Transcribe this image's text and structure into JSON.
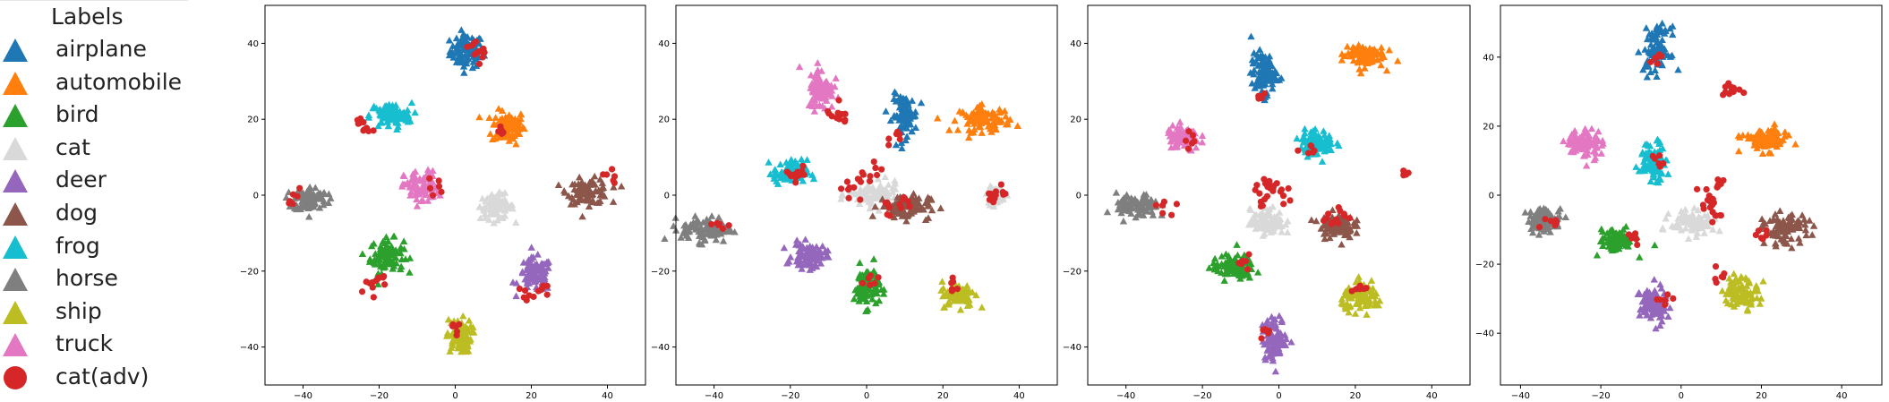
{
  "legend": {
    "title": "Labels",
    "items": [
      {
        "label": "airplane",
        "color": "#1f77b4",
        "marker": "triangle"
      },
      {
        "label": "automobile",
        "color": "#ff7f0e",
        "marker": "triangle"
      },
      {
        "label": "bird",
        "color": "#2ca02c",
        "marker": "triangle"
      },
      {
        "label": "cat",
        "color": "#d9d9d9",
        "marker": "triangle"
      },
      {
        "label": "deer",
        "color": "#9467bd",
        "marker": "triangle"
      },
      {
        "label": "dog",
        "color": "#8c564b",
        "marker": "triangle"
      },
      {
        "label": "frog",
        "color": "#17becf",
        "marker": "triangle"
      },
      {
        "label": "horse",
        "color": "#7f7f7f",
        "marker": "triangle"
      },
      {
        "label": "ship",
        "color": "#bcbd22",
        "marker": "triangle"
      },
      {
        "label": "truck",
        "color": "#e377c2",
        "marker": "triangle"
      },
      {
        "label": "cat(adv)",
        "color": "#d62728",
        "marker": "circle"
      }
    ]
  },
  "chart_data": [
    {
      "type": "scatter",
      "xlim": [
        -50,
        50
      ],
      "ylim": [
        -50,
        50
      ],
      "xticks": [
        -40,
        -20,
        0,
        20,
        40
      ],
      "yticks": [
        40,
        20,
        0,
        -20,
        -40
      ],
      "clusters": [
        {
          "label": "airplane",
          "center": [
            3,
            38
          ],
          "spread": [
            4,
            4
          ]
        },
        {
          "label": "automobile",
          "center": [
            14,
            18
          ],
          "spread": [
            4,
            4
          ]
        },
        {
          "label": "bird",
          "center": [
            -18,
            -16
          ],
          "spread": [
            4,
            4
          ]
        },
        {
          "label": "cat",
          "center": [
            11,
            -3
          ],
          "spread": [
            4,
            3
          ]
        },
        {
          "label": "deer",
          "center": [
            21,
            -21
          ],
          "spread": [
            4,
            4
          ]
        },
        {
          "label": "dog",
          "center": [
            35,
            1
          ],
          "spread": [
            5,
            3
          ]
        },
        {
          "label": "frog",
          "center": [
            -17,
            21
          ],
          "spread": [
            5,
            3
          ]
        },
        {
          "label": "horse",
          "center": [
            -38,
            -1
          ],
          "spread": [
            4,
            3
          ]
        },
        {
          "label": "ship",
          "center": [
            1,
            -37
          ],
          "spread": [
            3,
            4
          ]
        },
        {
          "label": "truck",
          "center": [
            -9,
            2
          ],
          "spread": [
            4,
            4
          ]
        }
      ],
      "adversarial": [
        [
          -25,
          19
        ],
        [
          -23,
          18
        ],
        [
          -20,
          -22
        ],
        [
          -22,
          -24
        ],
        [
          4,
          39
        ],
        [
          7,
          37
        ],
        [
          23,
          -25
        ],
        [
          19,
          -26
        ],
        [
          -42,
          0
        ],
        [
          41,
          5
        ],
        [
          0,
          -35
        ],
        [
          -6,
          2
        ],
        [
          12,
          17
        ]
      ]
    },
    {
      "type": "scatter",
      "xlim": [
        -50,
        50
      ],
      "ylim": [
        -50,
        50
      ],
      "xticks": [
        -40,
        -20,
        0,
        20,
        40
      ],
      "yticks": [
        40,
        20,
        0,
        -20,
        -40
      ],
      "clusters": [
        {
          "label": "airplane",
          "center": [
            10,
            21
          ],
          "spread": [
            3,
            5
          ]
        },
        {
          "label": "automobile",
          "center": [
            31,
            20
          ],
          "spread": [
            6,
            3
          ]
        },
        {
          "label": "bird",
          "center": [
            0,
            -24
          ],
          "spread": [
            3,
            5
          ]
        },
        {
          "label": "cat",
          "center": [
            2,
            0
          ],
          "spread": [
            6,
            3
          ]
        },
        {
          "label": "deer",
          "center": [
            -15,
            -16
          ],
          "spread": [
            4,
            3
          ]
        },
        {
          "label": "dog",
          "center": [
            10,
            -3
          ],
          "spread": [
            6,
            3
          ]
        },
        {
          "label": "frog",
          "center": [
            -20,
            6
          ],
          "spread": [
            4,
            3
          ]
        },
        {
          "label": "horse",
          "center": [
            -42,
            -9
          ],
          "spread": [
            6,
            3
          ]
        },
        {
          "label": "ship",
          "center": [
            24,
            -26
          ],
          "spread": [
            4,
            3
          ]
        },
        {
          "label": "truck",
          "center": [
            -12,
            28
          ],
          "spread": [
            3,
            5
          ]
        },
        {
          "label": "cat",
          "center": [
            34,
            0
          ],
          "spread": [
            2,
            2
          ]
        }
      ],
      "adversarial": [
        [
          -2,
          5
        ],
        [
          2,
          7
        ],
        [
          5,
          -3
        ],
        [
          -4,
          0
        ],
        [
          10,
          -2
        ],
        [
          35,
          1
        ],
        [
          34,
          -1
        ],
        [
          -9,
          22
        ],
        [
          -6,
          20
        ],
        [
          1,
          -22
        ],
        [
          -20,
          5
        ],
        [
          -17,
          6
        ],
        [
          8,
          15
        ],
        [
          -38,
          -8
        ],
        [
          22,
          -24
        ]
      ]
    },
    {
      "type": "scatter",
      "xlim": [
        -50,
        50
      ],
      "ylim": [
        -50,
        50
      ],
      "xticks": [
        -40,
        -20,
        0,
        20,
        40
      ],
      "yticks": [
        40,
        20,
        0,
        -20,
        -40
      ],
      "clusters": [
        {
          "label": "airplane",
          "center": [
            -4,
            32
          ],
          "spread": [
            3,
            5
          ]
        },
        {
          "label": "automobile",
          "center": [
            22,
            37
          ],
          "spread": [
            5,
            3
          ]
        },
        {
          "label": "bird",
          "center": [
            -12,
            -19
          ],
          "spread": [
            5,
            3
          ]
        },
        {
          "label": "cat",
          "center": [
            -3,
            -7
          ],
          "spread": [
            4,
            3
          ]
        },
        {
          "label": "deer",
          "center": [
            -1,
            -38
          ],
          "spread": [
            3,
            5
          ]
        },
        {
          "label": "dog",
          "center": [
            15,
            -8
          ],
          "spread": [
            4,
            3
          ]
        },
        {
          "label": "frog",
          "center": [
            10,
            14
          ],
          "spread": [
            4,
            3
          ]
        },
        {
          "label": "horse",
          "center": [
            -37,
            -3
          ],
          "spread": [
            5,
            3
          ]
        },
        {
          "label": "ship",
          "center": [
            22,
            -27
          ],
          "spread": [
            5,
            3
          ]
        },
        {
          "label": "truck",
          "center": [
            -25,
            15
          ],
          "spread": [
            4,
            3
          ]
        }
      ],
      "adversarial": [
        [
          -2,
          1
        ],
        [
          -5,
          -1
        ],
        [
          1,
          0
        ],
        [
          -3,
          3
        ],
        [
          13,
          -6
        ],
        [
          8,
          13
        ],
        [
          33,
          6
        ],
        [
          -5,
          27
        ],
        [
          -9,
          -17
        ],
        [
          -3,
          -36
        ],
        [
          -30,
          -3
        ],
        [
          -23,
          14
        ],
        [
          20,
          -24
        ],
        [
          16,
          -5
        ]
      ]
    },
    {
      "type": "scatter",
      "xlim": [
        -45,
        50
      ],
      "ylim": [
        -55,
        55
      ],
      "xticks": [
        -40,
        -20,
        0,
        20,
        40
      ],
      "yticks": [
        40,
        20,
        0,
        -20,
        -40
      ],
      "clusters": [
        {
          "label": "airplane",
          "center": [
            -6,
            42
          ],
          "spread": [
            3,
            6
          ]
        },
        {
          "label": "automobile",
          "center": [
            21,
            16
          ],
          "spread": [
            5,
            3
          ]
        },
        {
          "label": "bird",
          "center": [
            -16,
            -13
          ],
          "spread": [
            4,
            3
          ]
        },
        {
          "label": "cat",
          "center": [
            3,
            -8
          ],
          "spread": [
            5,
            3
          ]
        },
        {
          "label": "deer",
          "center": [
            -7,
            -32
          ],
          "spread": [
            3,
            5
          ]
        },
        {
          "label": "dog",
          "center": [
            26,
            -10
          ],
          "spread": [
            5,
            4
          ]
        },
        {
          "label": "frog",
          "center": [
            -7,
            10
          ],
          "spread": [
            3,
            5
          ]
        },
        {
          "label": "horse",
          "center": [
            -34,
            -7
          ],
          "spread": [
            4,
            3
          ]
        },
        {
          "label": "ship",
          "center": [
            15,
            -28
          ],
          "spread": [
            4,
            4
          ]
        },
        {
          "label": "truck",
          "center": [
            -24,
            15
          ],
          "spread": [
            4,
            4
          ]
        }
      ],
      "adversarial": [
        [
          13,
          30
        ],
        [
          12,
          31
        ],
        [
          7,
          -2
        ],
        [
          10,
          3
        ],
        [
          9,
          -6
        ],
        [
          6,
          0
        ],
        [
          -7,
          40
        ],
        [
          -6,
          10
        ],
        [
          -12,
          -12
        ],
        [
          -4,
          -30
        ],
        [
          -33,
          -8
        ],
        [
          20,
          -11
        ],
        [
          10,
          -24
        ]
      ]
    }
  ]
}
